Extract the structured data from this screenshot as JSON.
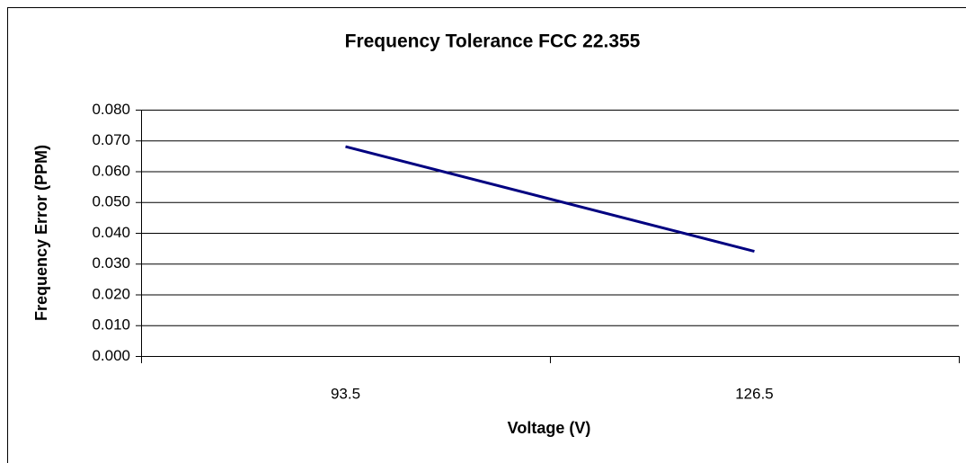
{
  "chart_data": {
    "type": "line",
    "title": "Frequency Tolerance FCC 22.355",
    "x_label": "Voltage (V)",
    "y_label": "Frequency Error (PPM)",
    "categories": [
      "93.5",
      "126.5"
    ],
    "values": [
      0.068,
      0.034
    ],
    "color": "#000080",
    "ylim": [
      0,
      0.08
    ],
    "yticks": [
      {
        "value": 0,
        "label": "0.000"
      },
      {
        "value": 0.01,
        "label": "0.010"
      },
      {
        "value": 0.02,
        "label": "0.020"
      },
      {
        "value": 0.03,
        "label": "0.030"
      },
      {
        "value": 0.04,
        "label": "0.040"
      },
      {
        "value": 0.05,
        "label": "0.050"
      },
      {
        "value": 0.06,
        "label": "0.060"
      },
      {
        "value": 0.07,
        "label": "0.070"
      },
      {
        "value": 0.08,
        "label": "0.080"
      }
    ],
    "grid": true
  }
}
